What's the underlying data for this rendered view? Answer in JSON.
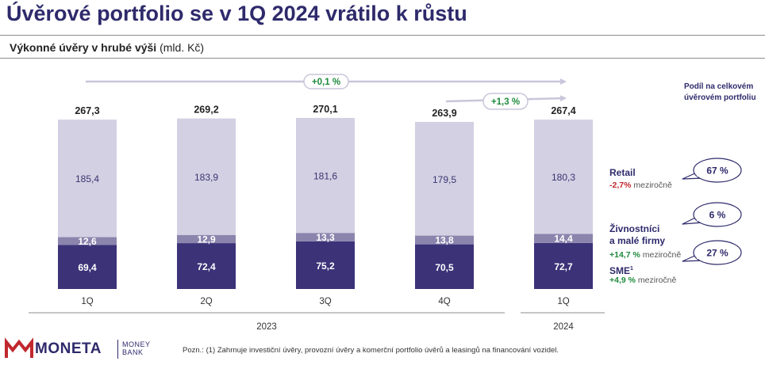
{
  "header": {
    "title": "Úvěrové portfolio se v 1Q 2024 vrátilo k růstu",
    "subtitle_bold": "Výkonné úvěry v hrubé výši",
    "subtitle_unit": "(mld. Kč)"
  },
  "chart_data": {
    "type": "bar",
    "stacked": true,
    "categories": [
      "1Q",
      "2Q",
      "3Q",
      "4Q",
      "1Q"
    ],
    "year_groups": [
      {
        "label": "2023",
        "categories": [
          "1Q",
          "2Q",
          "3Q",
          "4Q"
        ]
      },
      {
        "label": "2024",
        "categories": [
          "1Q"
        ]
      }
    ],
    "totals": [
      "267,3",
      "269,2",
      "270,1",
      "263,9",
      "267,4"
    ],
    "series": [
      {
        "name": "SME",
        "values": [
          69.4,
          72.4,
          75.2,
          70.5,
          72.7
        ],
        "labels": [
          "69,4",
          "72,4",
          "75,2",
          "70,5",
          "72,7"
        ],
        "color": "#3b3278"
      },
      {
        "name": "Živnostníci a malé firmy",
        "values": [
          12.6,
          12.9,
          13.3,
          13.8,
          14.4
        ],
        "labels": [
          "12,6",
          "12,9",
          "13,3",
          "13,8",
          "14,4"
        ],
        "color": "#8b84ad"
      },
      {
        "name": "Retail",
        "values": [
          185.4,
          183.9,
          181.6,
          179.5,
          180.3
        ],
        "labels": [
          "185,4",
          "183,9",
          "181,6",
          "179,5",
          "180,3"
        ],
        "color": "#d3d0e3"
      }
    ],
    "growth_annotations": [
      {
        "label": "+0,1 %",
        "from": 0,
        "to": 4
      },
      {
        "label": "+1,3 %",
        "from": 3,
        "to": 4
      }
    ],
    "ylim": [
      0,
      280
    ],
    "colors": {
      "label_dark": "#2e2a6b",
      "growth_green": "#1e8a3c",
      "decline_red": "#c0282e",
      "arrow": "#c8c6da"
    }
  },
  "legend": {
    "portfolio_heading_line1": "Podíl na celkovém",
    "portfolio_heading_line2": "úvěrovém portfoliu",
    "segments": [
      {
        "name_line1": "Retail",
        "name_line2": "",
        "change": "-2,7%",
        "change_suffix": " meziročně",
        "share": "67 %"
      },
      {
        "name_line1": "Živnostníci",
        "name_line2": "a malé firmy",
        "change": "+14,7 %",
        "change_suffix": " meziročně",
        "share": "6 %"
      },
      {
        "name_line1": "SME",
        "name_line2": "",
        "superscript": "1",
        "change": "+4,9 %",
        "change_suffix": " meziročně",
        "share": "27 %"
      }
    ]
  },
  "footer": {
    "brand": "MONETA",
    "brand_sub_line1": "MONEY",
    "brand_sub_line2": "BANK",
    "note": "Pozn.: (1) Zahrnuje investiční úvěry, provozní úvěry a komerční portfolio úvěrů a leasingů na financování vozidel."
  }
}
